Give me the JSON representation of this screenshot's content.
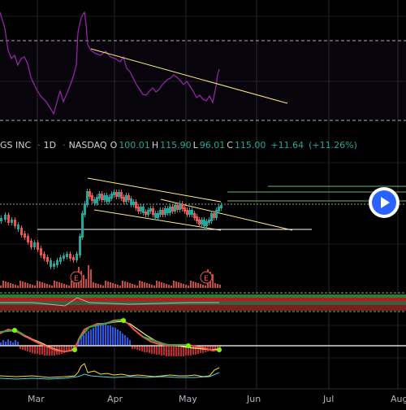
{
  "header": {
    "symbol_name": "GS INC",
    "interval": "1D",
    "exchange": "NASDAQ",
    "open_label": "O",
    "open": "100.01",
    "high_label": "H",
    "high": "115.90",
    "low_label": "L",
    "low": "96.01",
    "close_label": "C",
    "close": "115.00",
    "change": "+11.64",
    "change_pct": "(+11.26%)"
  },
  "earnings_marker": "E",
  "months": [
    "Mar",
    "Apr",
    "May",
    "Jun",
    "Jul",
    "Aug"
  ],
  "colors": {
    "background": "#000000",
    "up": "#26a69a",
    "down": "#ef5350",
    "trendline": "#fff176",
    "rsi_line": "#9c27b0",
    "target_lines": "#66bb6a",
    "accent": "#2962ff"
  },
  "icons": {
    "play_button": "play-icon"
  }
}
